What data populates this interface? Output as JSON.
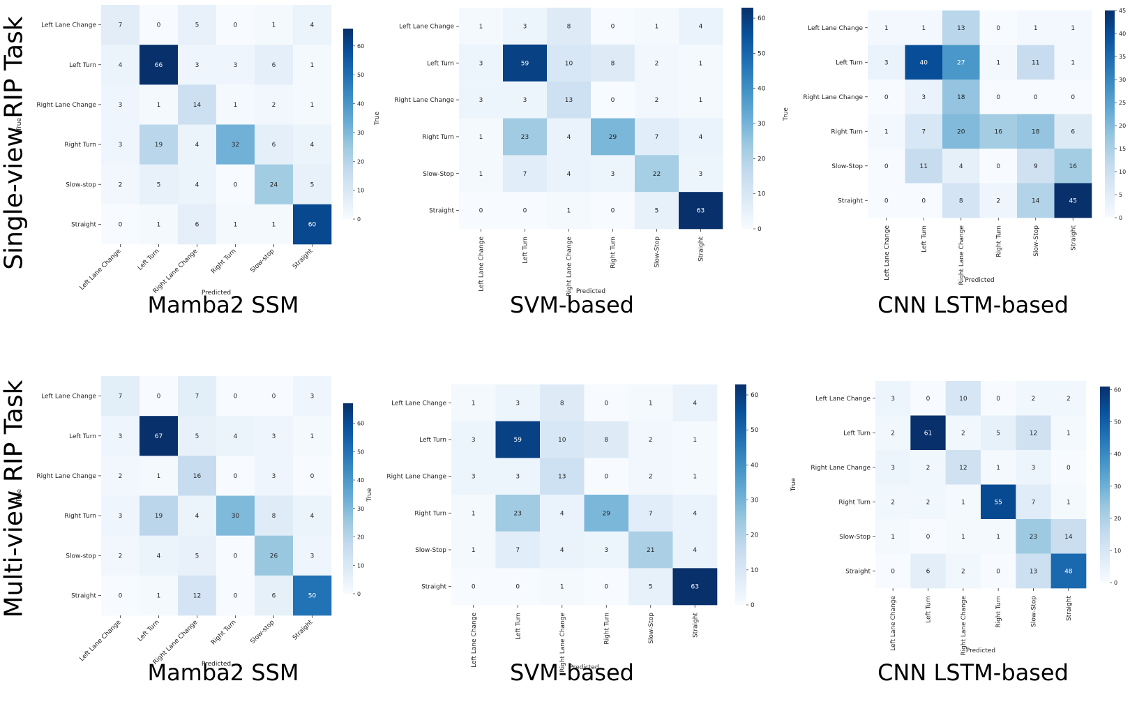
{
  "rows": {
    "single": "Single-view RIP Task",
    "multi": "Multi-view RIP Task"
  },
  "chart_data": [
    {
      "id": "m-single",
      "title": "Mamba2 SSM",
      "type": "heatmap",
      "xlabel": "Predicted",
      "ylabel": "True",
      "x_categories": [
        "Left Lane Change",
        "Left Turn",
        "Right Lane Change",
        "Right Turn",
        "Slow-stop",
        "Straight"
      ],
      "y_categories": [
        "Left Lane Change",
        "Left Turn",
        "Right Lane Change",
        "Right Turn",
        "Slow-stop",
        "Straight"
      ],
      "values": [
        [
          7,
          0,
          5,
          0,
          1,
          4
        ],
        [
          4,
          66,
          3,
          3,
          6,
          1
        ],
        [
          3,
          1,
          14,
          1,
          2,
          1
        ],
        [
          3,
          19,
          4,
          32,
          6,
          4
        ],
        [
          2,
          5,
          4,
          0,
          24,
          5
        ],
        [
          0,
          1,
          6,
          1,
          1,
          60
        ]
      ],
      "vmax": 66,
      "colorbar_ticks": [
        "0",
        "10",
        "20",
        "30",
        "40",
        "50",
        "60"
      ],
      "colormap": [
        "#f7fbff",
        "#08306b"
      ]
    },
    {
      "id": "s-single",
      "title": "SVM-based",
      "type": "heatmap",
      "xlabel": "Predicted",
      "ylabel": "True",
      "x_categories": [
        "Left Lane Change",
        "Left Turn",
        "Right Lane Change",
        "Right Turn",
        "Slow-Stop",
        "Straight"
      ],
      "y_categories": [
        "Left Lane Change",
        "Left Turn",
        "Right Lane Change",
        "Right Turn",
        "Slow-Stop",
        "Straight"
      ],
      "values": [
        [
          1,
          3,
          8,
          0,
          1,
          4
        ],
        [
          3,
          59,
          10,
          8,
          2,
          1
        ],
        [
          3,
          3,
          13,
          0,
          2,
          1
        ],
        [
          1,
          23,
          4,
          29,
          7,
          4
        ],
        [
          1,
          7,
          4,
          3,
          22,
          3
        ],
        [
          0,
          0,
          1,
          0,
          5,
          63
        ]
      ],
      "vmax": 63,
      "colorbar_ticks": [
        "0",
        "10",
        "20",
        "30",
        "40",
        "50",
        "60"
      ],
      "colormap": [
        "#f7fbff",
        "#08306b"
      ]
    },
    {
      "id": "c-single",
      "title": "CNN LSTM-based",
      "type": "heatmap",
      "xlabel": "Predicted",
      "ylabel": "True",
      "x_categories": [
        "Left Lane Change",
        "Left Turn",
        "Right Lane Change",
        "Right Turn",
        "Slow-Stop",
        "Straight"
      ],
      "y_categories": [
        "Left Lane Change",
        "Left Turn",
        "Right Lane Change",
        "Right Turn",
        "Slow-Stop",
        "Straight"
      ],
      "values": [
        [
          1,
          1,
          13,
          0,
          1,
          1
        ],
        [
          3,
          40,
          27,
          1,
          11,
          1
        ],
        [
          0,
          3,
          18,
          0,
          0,
          0
        ],
        [
          1,
          7,
          20,
          16,
          18,
          6
        ],
        [
          0,
          11,
          4,
          0,
          9,
          16
        ],
        [
          0,
          0,
          8,
          2,
          14,
          45
        ]
      ],
      "vmax": 45,
      "colorbar_ticks": [
        "0",
        "5",
        "10",
        "15",
        "20",
        "25",
        "30",
        "35",
        "40",
        "45"
      ],
      "colormap": [
        "#f7fbff",
        "#08306b"
      ]
    },
    {
      "id": "m-multi",
      "title": "Mamba2 SSM",
      "type": "heatmap",
      "xlabel": "Predicted",
      "ylabel": "True",
      "x_categories": [
        "Left Lane Change",
        "Left Turn",
        "Right Lane Change",
        "Right Turn",
        "Slow-stop",
        "Straight"
      ],
      "y_categories": [
        "Left Lane Change",
        "Left Turn",
        "Right Lane Change",
        "Right Turn",
        "Slow-stop",
        "Straight"
      ],
      "values": [
        [
          7,
          0,
          7,
          0,
          0,
          3
        ],
        [
          3,
          67,
          5,
          4,
          3,
          1
        ],
        [
          2,
          1,
          16,
          0,
          3,
          0
        ],
        [
          3,
          19,
          4,
          30,
          8,
          4
        ],
        [
          2,
          4,
          5,
          0,
          26,
          3
        ],
        [
          0,
          1,
          12,
          0,
          6,
          50
        ]
      ],
      "vmax": 67,
      "colorbar_ticks": [
        "0",
        "10",
        "20",
        "30",
        "40",
        "50",
        "60"
      ],
      "colormap": [
        "#f7fbff",
        "#08306b"
      ]
    },
    {
      "id": "s-multi",
      "title": "SVM-based",
      "type": "heatmap",
      "xlabel": "Predicted",
      "ylabel": "True",
      "x_categories": [
        "Left Lane Change",
        "Left Turn",
        "Right Lane Change",
        "Right Turn",
        "Slow-Stop",
        "Straight"
      ],
      "y_categories": [
        "Left Lane Change",
        "Left Turn",
        "Right Lane Change",
        "Right Turn",
        "Slow-Stop",
        "Straight"
      ],
      "values": [
        [
          1,
          3,
          8,
          0,
          1,
          4
        ],
        [
          3,
          59,
          10,
          8,
          2,
          1
        ],
        [
          3,
          3,
          13,
          0,
          2,
          1
        ],
        [
          1,
          23,
          4,
          29,
          7,
          4
        ],
        [
          1,
          7,
          4,
          3,
          21,
          4
        ],
        [
          0,
          0,
          1,
          0,
          5,
          63
        ]
      ],
      "vmax": 63,
      "colorbar_ticks": [
        "0",
        "10",
        "20",
        "30",
        "40",
        "50",
        "60"
      ],
      "colormap": [
        "#f7fbff",
        "#08306b"
      ]
    },
    {
      "id": "c-multi",
      "title": "CNN LSTM-based",
      "type": "heatmap",
      "xlabel": "Predicted",
      "ylabel": "True",
      "x_categories": [
        "Left Lane Change",
        "Left Turn",
        "Right Lane Change",
        "Right Turn",
        "Slow-Stop",
        "Straight"
      ],
      "y_categories": [
        "Left Lane Change",
        "Left Turn",
        "Right Lane Change",
        "Right Turn",
        "Slow-Stop",
        "Straight"
      ],
      "values": [
        [
          3,
          0,
          10,
          0,
          2,
          2
        ],
        [
          2,
          61,
          2,
          5,
          12,
          1
        ],
        [
          3,
          2,
          12,
          1,
          3,
          0
        ],
        [
          2,
          2,
          1,
          55,
          7,
          1
        ],
        [
          1,
          0,
          1,
          1,
          23,
          14
        ],
        [
          0,
          6,
          2,
          0,
          13,
          48
        ]
      ],
      "vmax": 61,
      "colorbar_ticks": [
        "0",
        "10",
        "20",
        "30",
        "40",
        "50",
        "60"
      ],
      "colormap": [
        "#f7fbff",
        "#08306b"
      ]
    }
  ]
}
